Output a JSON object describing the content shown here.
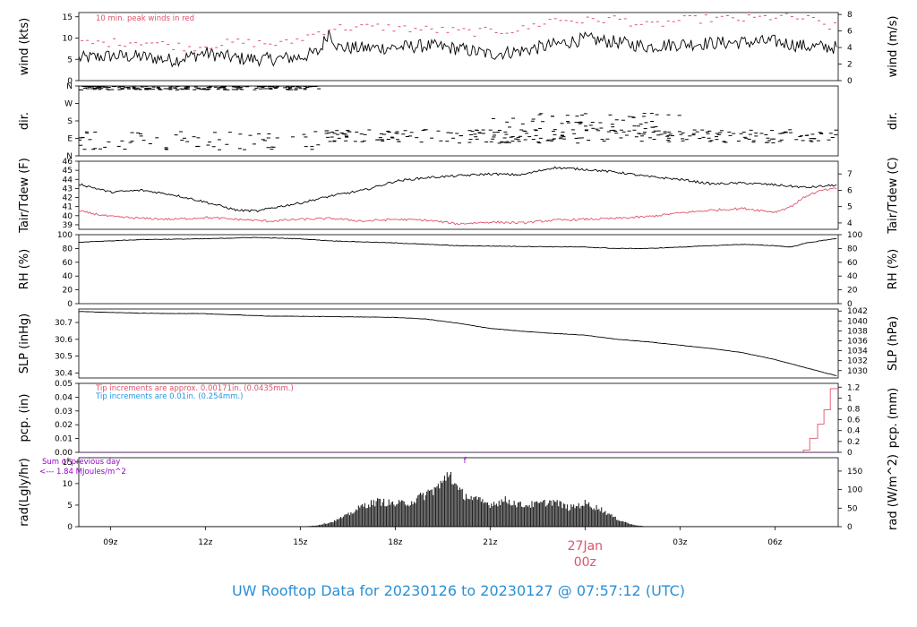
{
  "title": "UW Rooftop Data for 20230126  to  20230127 @ 07:57:12  (UTC)",
  "colors": {
    "line": "#000000",
    "peak": "#df536b",
    "tip_old": "#df536b",
    "tip_new": "#2297e6",
    "purple": "#9900cc",
    "title": "#2a8fd4"
  },
  "x_axis": {
    "start": "2023-01-26 08:00 UTC",
    "end": "2023-01-27 08:00 UTC",
    "ticks": [
      {
        "hour": 9,
        "label": "09z"
      },
      {
        "hour": 12,
        "label": "12z"
      },
      {
        "hour": 15,
        "label": "15z"
      },
      {
        "hour": 18,
        "label": "18z"
      },
      {
        "hour": 21,
        "label": "21z"
      },
      {
        "hour": 24,
        "label": "00z"
      },
      {
        "hour": 27,
        "label": "03z"
      },
      {
        "hour": 30,
        "label": "06z"
      }
    ],
    "day_label": "27Jan"
  },
  "chart_data": [
    {
      "id": "wind",
      "type": "line",
      "ylabel_left": "wind (kts)",
      "ylabel_right": "wind (m/s)",
      "ylim": [
        0,
        16
      ],
      "left_ticks": [
        0,
        5,
        10,
        15
      ],
      "right_ticks": [
        0,
        2,
        4,
        6,
        8
      ],
      "annotation": "10 min. peak winds in red",
      "series": [
        {
          "values": [
            [
              8,
              5.2
            ],
            [
              9,
              5.8
            ],
            [
              10,
              5.6
            ],
            [
              11,
              4.8
            ],
            [
              12,
              6.5
            ],
            [
              13,
              5.2
            ],
            [
              14,
              5.0
            ],
            [
              15,
              5.5
            ],
            [
              15.6,
              6.8
            ],
            [
              15.9,
              11.6
            ],
            [
              16.2,
              7.8
            ],
            [
              17,
              7.6
            ],
            [
              18,
              7.8
            ],
            [
              19,
              8.2
            ],
            [
              20,
              7.5
            ],
            [
              21,
              6.2
            ],
            [
              22,
              7.0
            ],
            [
              23,
              8.4
            ],
            [
              24,
              9.8
            ],
            [
              25,
              9.0
            ],
            [
              26,
              8.0
            ],
            [
              27,
              8.6
            ],
            [
              28,
              8.8
            ],
            [
              29,
              9.0
            ],
            [
              30,
              9.2
            ],
            [
              31,
              8.0
            ],
            [
              32,
              7.8
            ]
          ]
        },
        {
          "style": "peak-dashes",
          "values": [
            [
              8.5,
              8.8
            ],
            [
              10,
              9.2
            ],
            [
              11.5,
              7.8
            ],
            [
              13,
              9.0
            ],
            [
              14.5,
              8.6
            ],
            [
              16,
              12.4
            ],
            [
              17.5,
              12.6
            ],
            [
              19,
              12.0
            ],
            [
              20.5,
              11.4
            ],
            [
              22,
              12.0
            ],
            [
              23,
              14.4
            ],
            [
              24,
              14.0
            ],
            [
              25,
              14.6
            ],
            [
              26,
              12.8
            ],
            [
              27,
              14.2
            ],
            [
              28,
              14.6
            ],
            [
              29,
              14.4
            ],
            [
              30,
              15.0
            ],
            [
              31,
              14.6
            ],
            [
              31.8,
              12.6
            ]
          ]
        }
      ]
    },
    {
      "id": "dir",
      "type": "scatter",
      "ylabel_left": "dir.",
      "ylabel_right": "dir.",
      "ylim": [
        0,
        360
      ],
      "left_ticks": [
        {
          "v": 0,
          "l": "N"
        },
        {
          "v": 90,
          "l": "E"
        },
        {
          "v": 180,
          "l": "S"
        },
        {
          "v": 270,
          "l": "W"
        },
        {
          "v": 360,
          "l": "N"
        }
      ],
      "segments": [
        {
          "from": 8,
          "to": 15.8,
          "level": 355,
          "spread": 15
        },
        {
          "from": 8,
          "to": 15.8,
          "level": 80,
          "spread": 50,
          "sparse": true
        },
        {
          "from": 15.8,
          "to": 32,
          "level": 100,
          "spread": 35
        },
        {
          "from": 21,
          "to": 27,
          "level": 170,
          "spread": 50,
          "sparse": true
        }
      ]
    },
    {
      "id": "temp",
      "type": "line",
      "ylabel_left": "Tair/Tdew (F)",
      "ylabel_right": "Tair/Tdew (C)",
      "ylim": [
        38.5,
        46
      ],
      "left_ticks": [
        39,
        40,
        41,
        42,
        43,
        44,
        45,
        46
      ],
      "right_ticks": [
        {
          "v": 39.2,
          "l": "4"
        },
        {
          "v": 41.0,
          "l": "5"
        },
        {
          "v": 42.8,
          "l": "6"
        },
        {
          "v": 44.6,
          "l": "7"
        }
      ],
      "series": [
        {
          "name": "Tair",
          "values": [
            [
              8,
              43.5
            ],
            [
              9,
              42.6
            ],
            [
              10,
              42.8
            ],
            [
              11,
              42.3
            ],
            [
              12,
              41.5
            ],
            [
              13,
              40.6
            ],
            [
              13.7,
              40.5
            ],
            [
              14,
              40.8
            ],
            [
              15,
              41.4
            ],
            [
              16,
              42.2
            ],
            [
              17,
              42.8
            ],
            [
              18,
              43.8
            ],
            [
              19,
              44.2
            ],
            [
              20,
              44.4
            ],
            [
              21,
              44.6
            ],
            [
              22,
              44.5
            ],
            [
              23,
              45.3
            ],
            [
              24,
              45.1
            ],
            [
              25,
              44.8
            ],
            [
              26,
              44.3
            ],
            [
              27,
              44.0
            ],
            [
              28,
              43.5
            ],
            [
              29,
              43.6
            ],
            [
              30,
              43.4
            ],
            [
              31,
              43.1
            ],
            [
              32,
              43.4
            ]
          ]
        },
        {
          "name": "Tdew",
          "values": [
            [
              8,
              40.5
            ],
            [
              9,
              39.9
            ],
            [
              10,
              39.7
            ],
            [
              11,
              39.6
            ],
            [
              12,
              39.8
            ],
            [
              13,
              39.6
            ],
            [
              14,
              39.4
            ],
            [
              15,
              39.6
            ],
            [
              16,
              39.7
            ],
            [
              17,
              39.4
            ],
            [
              18,
              39.6
            ],
            [
              19,
              39.5
            ],
            [
              20,
              39.1
            ],
            [
              21,
              39.3
            ],
            [
              22,
              39.2
            ],
            [
              23,
              39.5
            ],
            [
              24,
              39.6
            ],
            [
              25,
              39.7
            ],
            [
              26,
              39.9
            ],
            [
              27,
              40.3
            ],
            [
              28,
              40.6
            ],
            [
              29,
              40.8
            ],
            [
              30,
              40.4
            ],
            [
              30.5,
              41.0
            ],
            [
              31,
              42.2
            ],
            [
              31.5,
              42.8
            ],
            [
              32,
              43.0
            ]
          ]
        }
      ]
    },
    {
      "id": "rh",
      "type": "line",
      "ylabel_left": "RH (%)",
      "ylabel_right": "RH (%)",
      "ylim": [
        0,
        100
      ],
      "left_ticks": [
        0,
        20,
        40,
        60,
        80,
        100
      ],
      "right_ticks": [
        0,
        20,
        40,
        60,
        80,
        100
      ],
      "series": [
        {
          "values": [
            [
              8,
              89
            ],
            [
              10,
              93
            ],
            [
              12,
              94
            ],
            [
              13.5,
              96
            ],
            [
              15,
              94
            ],
            [
              16,
              91
            ],
            [
              18,
              88
            ],
            [
              20,
              84
            ],
            [
              22,
              83
            ],
            [
              24,
              82
            ],
            [
              25,
              80
            ],
            [
              26,
              80
            ],
            [
              27,
              82
            ],
            [
              28,
              84
            ],
            [
              29,
              86
            ],
            [
              30,
              84
            ],
            [
              30.5,
              82
            ],
            [
              31,
              88
            ],
            [
              32,
              95
            ]
          ]
        }
      ]
    },
    {
      "id": "slp",
      "type": "line",
      "ylabel_left": "SLP (inHg)",
      "ylabel_right": "SLP (hPa)",
      "ylim": [
        30.37,
        30.78
      ],
      "left_ticks": [
        30.4,
        30.5,
        30.6,
        30.7
      ],
      "right_ticks": [
        {
          "v": 30.4138,
          "l": "1030"
        },
        {
          "v": 30.4728,
          "l": "1032"
        },
        {
          "v": 30.5319,
          "l": "1034"
        },
        {
          "v": 30.591,
          "l": "1036"
        },
        {
          "v": 30.65,
          "l": "1038"
        },
        {
          "v": 30.7091,
          "l": "1040"
        },
        {
          "v": 30.7682,
          "l": "1042"
        }
      ],
      "series": [
        {
          "values": [
            [
              8,
              30.765
            ],
            [
              10,
              30.755
            ],
            [
              12,
              30.752
            ],
            [
              14,
              30.738
            ],
            [
              16,
              30.735
            ],
            [
              18,
              30.73
            ],
            [
              19,
              30.72
            ],
            [
              20,
              30.695
            ],
            [
              21,
              30.665
            ],
            [
              22,
              30.648
            ],
            [
              23,
              30.635
            ],
            [
              24,
              30.625
            ],
            [
              25,
              30.6
            ],
            [
              26,
              30.585
            ],
            [
              27,
              30.565
            ],
            [
              28,
              30.545
            ],
            [
              29,
              30.52
            ],
            [
              30,
              30.48
            ],
            [
              31,
              30.43
            ],
            [
              32,
              30.38
            ]
          ]
        }
      ]
    },
    {
      "id": "pcp",
      "type": "line",
      "ylabel_left": "pcp. (in)",
      "ylabel_right": "pcp. (mm)",
      "ylim": [
        0,
        0.05
      ],
      "left_ticks": [
        0.0,
        0.01,
        0.02,
        0.03,
        0.04,
        0.05
      ],
      "right_ticks": [
        {
          "v": 0,
          "l": "0"
        },
        {
          "v": 0.00787,
          "l": "0.2"
        },
        {
          "v": 0.01575,
          "l": "0.4"
        },
        {
          "v": 0.02362,
          "l": "0.6"
        },
        {
          "v": 0.0315,
          "l": "0.8"
        },
        {
          "v": 0.03937,
          "l": "1"
        },
        {
          "v": 0.04724,
          "l": "1.2"
        }
      ],
      "annotations": [
        "Tip increments are approx. 0.00171in. (0.0435mm.)",
        "Tip increments are 0.01in. (0.254mm.)"
      ],
      "series": [
        {
          "name": "pcp (0.00171in tips)",
          "values": [
            [
              8,
              0
            ],
            [
              30.9,
              0
            ],
            [
              30.9,
              0.0017
            ],
            [
              31.1,
              0.0017
            ],
            [
              31.1,
              0.0102
            ],
            [
              31.35,
              0.0102
            ],
            [
              31.35,
              0.0205
            ],
            [
              31.55,
              0.0205
            ],
            [
              31.55,
              0.0308
            ],
            [
              31.75,
              0.0308
            ],
            [
              31.75,
              0.0462
            ],
            [
              32,
              0.0462
            ]
          ]
        },
        {
          "name": "pcp (0.01in tips)",
          "values": [
            [
              8,
              0
            ],
            [
              32,
              0
            ]
          ]
        }
      ]
    },
    {
      "id": "rad",
      "type": "area",
      "ylabel_left": "rad(Lgly/hr)",
      "ylabel_right": "rad (W/m^2)",
      "ylim": [
        0,
        16
      ],
      "left_ticks": [
        0,
        5,
        10,
        15
      ],
      "right_ticks": [
        {
          "v": 0,
          "l": "0"
        },
        {
          "v": 4.3,
          "l": "50"
        },
        {
          "v": 8.6,
          "l": "100"
        },
        {
          "v": 12.9,
          "l": "150"
        }
      ],
      "sum_label": "Sum of previous day",
      "sum_value": "<--- 1.84 MJoules/m^2",
      "marker": "f",
      "marker_x": 20.2,
      "series": [
        {
          "values": [
            [
              15,
              0
            ],
            [
              15.5,
              0.3
            ],
            [
              16,
              1.2
            ],
            [
              16.5,
              3
            ],
            [
              17,
              5.5
            ],
            [
              17.5,
              6.5
            ],
            [
              18,
              5.8
            ],
            [
              18.5,
              6.3
            ],
            [
              19,
              8.5
            ],
            [
              19.5,
              11
            ],
            [
              19.7,
              14.5
            ],
            [
              20,
              9
            ],
            [
              20.5,
              7
            ],
            [
              21,
              5.8
            ],
            [
              21.5,
              6.8
            ],
            [
              22,
              5.5
            ],
            [
              22.5,
              5.8
            ],
            [
              23,
              6.5
            ],
            [
              23.5,
              4.8
            ],
            [
              24,
              6
            ],
            [
              24.5,
              4.5
            ],
            [
              25,
              2
            ],
            [
              25.5,
              0.5
            ],
            [
              26,
              0
            ]
          ]
        }
      ]
    }
  ]
}
